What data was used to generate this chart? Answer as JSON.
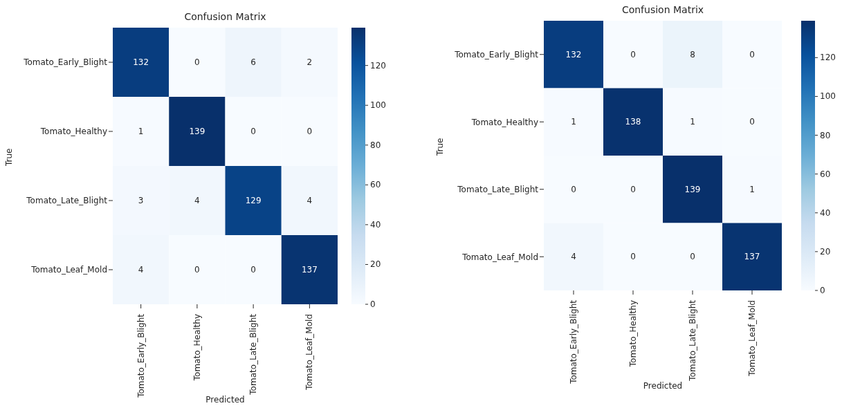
{
  "chart_data": [
    {
      "type": "heatmap",
      "title": "Confusion Matrix",
      "xlabel": "Predicted",
      "ylabel": "True",
      "categories": [
        "Tomato_Early_Blight",
        "Tomato_Healthy",
        "Tomato_Late_Blight",
        "Tomato_Leaf_Mold"
      ],
      "y_categories": [
        "Tomato_Early_Blight",
        "Tomato_Healthy",
        "Tomato_Late_Blight",
        "Tomato_Leaf_Mold"
      ],
      "cells": [
        [
          132,
          0,
          6,
          2
        ],
        [
          1,
          139,
          0,
          0
        ],
        [
          3,
          4,
          129,
          4
        ],
        [
          4,
          0,
          0,
          137
        ]
      ],
      "clim": [
        0,
        139
      ],
      "cticks": [
        0,
        20,
        40,
        60,
        80,
        100,
        120
      ],
      "data_labels": true
    },
    {
      "type": "heatmap",
      "title": "Confusion Matrix",
      "xlabel": "Predicted",
      "ylabel": "True",
      "categories": [
        "Tomato_Early_Blight",
        "Tomato_Healthy",
        "Tomato_Late_Blight",
        "Tomato_Leaf_Mold"
      ],
      "y_categories": [
        "Tomato_Early_Blight",
        "Tomato_Healthy",
        "Tomato_Late_Blight",
        "Tomato_Leaf_Mold"
      ],
      "cells": [
        [
          132,
          0,
          8,
          0
        ],
        [
          1,
          138,
          1,
          0
        ],
        [
          0,
          0,
          139,
          1
        ],
        [
          4,
          0,
          0,
          137
        ]
      ],
      "clim": [
        0,
        139
      ],
      "cticks": [
        0,
        20,
        40,
        60,
        80,
        100,
        120
      ],
      "data_labels": true
    }
  ]
}
